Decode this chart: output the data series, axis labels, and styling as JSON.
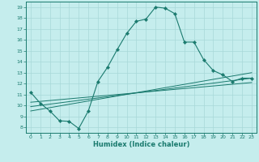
{
  "title": "",
  "xlabel": "Humidex (Indice chaleur)",
  "background_color": "#c5eded",
  "line_color": "#1a7a6e",
  "xlim": [
    -0.5,
    23.5
  ],
  "ylim": [
    7.5,
    19.5
  ],
  "xticks": [
    0,
    1,
    2,
    3,
    4,
    5,
    6,
    7,
    8,
    9,
    10,
    11,
    12,
    13,
    14,
    15,
    16,
    17,
    18,
    19,
    20,
    21,
    22,
    23
  ],
  "yticks": [
    8,
    9,
    10,
    11,
    12,
    13,
    14,
    15,
    16,
    17,
    18,
    19
  ],
  "grid_color": "#a8d8d8",
  "main_series": {
    "x": [
      0,
      1,
      2,
      3,
      4,
      5,
      6,
      7,
      8,
      9,
      10,
      11,
      12,
      13,
      14,
      15,
      16,
      17,
      18,
      19,
      20,
      21,
      22,
      23
    ],
    "y": [
      11.2,
      10.2,
      9.5,
      8.6,
      8.55,
      7.9,
      9.5,
      12.2,
      13.5,
      15.1,
      16.6,
      17.7,
      17.9,
      19.0,
      18.9,
      18.4,
      15.8,
      15.8,
      14.2,
      13.2,
      12.8,
      12.2,
      12.5,
      12.5
    ]
  },
  "linear_series": [
    {
      "x": [
        0,
        23
      ],
      "y": [
        9.5,
        13.0
      ]
    },
    {
      "x": [
        0,
        23
      ],
      "y": [
        9.9,
        12.5
      ]
    },
    {
      "x": [
        0,
        23
      ],
      "y": [
        10.3,
        12.1
      ]
    }
  ]
}
